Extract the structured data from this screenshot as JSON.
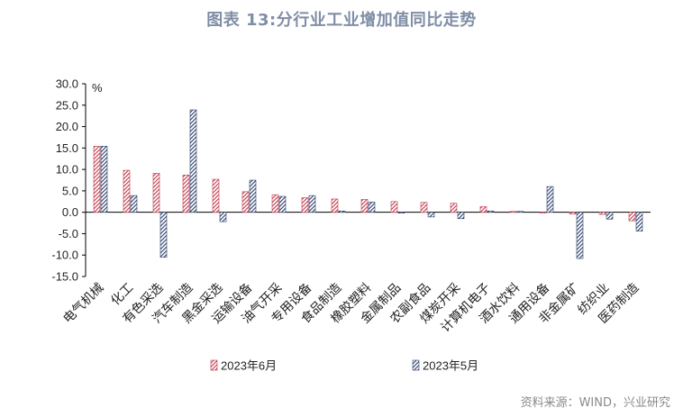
{
  "title": "图表 13:分行业工业增加值同比走势",
  "source": "资料来源：WIND，兴业研究",
  "chart_data": {
    "type": "bar",
    "unit_label": "%",
    "ylim": [
      -15,
      30
    ],
    "yticks": [
      "30.0",
      "25.0",
      "20.0",
      "15.0",
      "10.0",
      "5.0",
      "0.0",
      "-5.0",
      "-10.0",
      "-15.0"
    ],
    "ytick_values": [
      30,
      25,
      20,
      15,
      10,
      5,
      0,
      -5,
      -10,
      -15
    ],
    "categories": [
      "电气机械",
      "化工",
      "有色采选",
      "汽车制造",
      "黑金采选",
      "运输设备",
      "油气开采",
      "专用设备",
      "食品制造",
      "橡胶塑料",
      "金属制品",
      "农副食品",
      "煤炭开采",
      "计算机电子",
      "酒水饮料",
      "通用设备",
      "非金属矿",
      "纺织业",
      "医药制造"
    ],
    "series": [
      {
        "name": "2023年6月",
        "color": "#c0394b",
        "pattern": "diag-red",
        "values": [
          15.4,
          9.8,
          9.1,
          8.7,
          7.7,
          4.8,
          4.1,
          3.4,
          3.1,
          3.0,
          2.5,
          2.3,
          2.1,
          1.3,
          0.2,
          -0.1,
          -0.4,
          -0.5,
          -2.0
        ]
      },
      {
        "name": "2023年5月",
        "color": "#2b3f6b",
        "pattern": "diag-navy",
        "values": [
          15.4,
          3.9,
          -10.5,
          23.9,
          -2.2,
          7.5,
          3.7,
          3.9,
          0.3,
          2.4,
          -0.2,
          -1.1,
          -1.5,
          0.3,
          0.2,
          6.0,
          -10.8,
          -1.6,
          -4.4
        ]
      }
    ],
    "legend_position": "bottom",
    "grid": false
  }
}
